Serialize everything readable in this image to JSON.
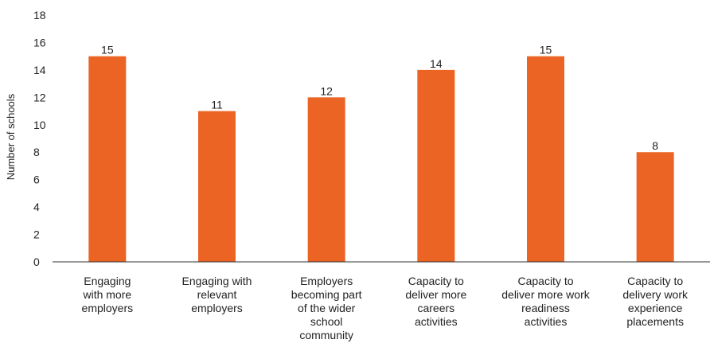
{
  "chart_data": {
    "type": "bar",
    "ylabel": "Number of schools",
    "ylim": [
      0,
      18
    ],
    "yticks": [
      0,
      2,
      4,
      6,
      8,
      10,
      12,
      14,
      16,
      18
    ],
    "grid": false,
    "categories": [
      "Engaging with more employers",
      "Engaging with relevant employers",
      "Employers becoming part of the wider school community",
      "Capacity to deliver more careers activities",
      "Capacity to deliver more work readiness activities",
      "Capacity to delivery work experience placements"
    ],
    "category_lines": [
      [
        "Engaging",
        "with more",
        "employers"
      ],
      [
        "Engaging with",
        "relevant",
        "employers"
      ],
      [
        "Employers",
        "becoming part",
        "of the wider",
        "school",
        "community"
      ],
      [
        "Capacity to",
        "deliver more",
        "careers",
        "activities"
      ],
      [
        "Capacity to",
        "deliver more work",
        "readiness",
        "activities"
      ],
      [
        "Capacity to",
        "delivery work",
        "experience",
        "placements"
      ]
    ],
    "values": [
      15,
      11,
      12,
      14,
      15,
      8
    ],
    "data_labels": [
      "15",
      "11",
      "12",
      "14",
      "15",
      "8"
    ],
    "bar_color": "#EB6424",
    "axis_color": "#333333"
  }
}
